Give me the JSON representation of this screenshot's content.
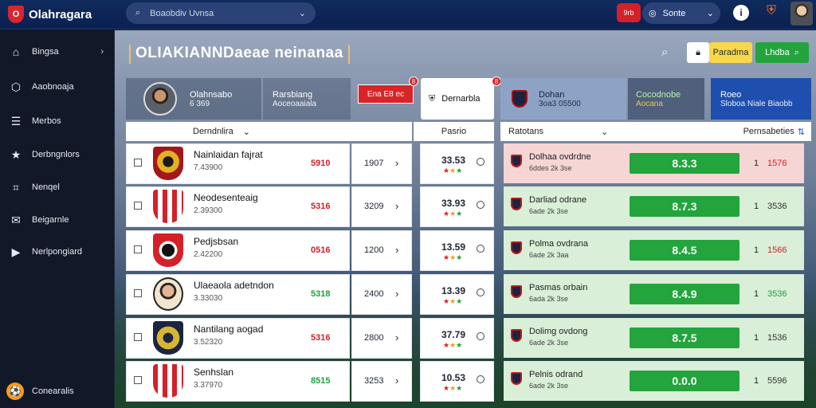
{
  "app": {
    "brand": "Olahragara",
    "logo_glyph": "O"
  },
  "topbar": {
    "search_value": "Boaobdiv Uvnsa",
    "pill_label": "9rb",
    "lang_label": "Sonte",
    "info_label": "i"
  },
  "sidebar": {
    "items": [
      {
        "label": "Bingsa",
        "icon": "home-icon",
        "glyph": "⌂",
        "chevron": true
      },
      {
        "label": "Aaobnoaja",
        "icon": "cube-icon",
        "glyph": "⬡",
        "chevron": false
      },
      {
        "label": "Merbos",
        "icon": "list-icon",
        "glyph": "☰",
        "chevron": false
      },
      {
        "label": "Derbngnlors",
        "icon": "star-icon",
        "glyph": "★",
        "chevron": false
      },
      {
        "label": "Nenqel",
        "icon": "ticket-icon",
        "glyph": "⌗",
        "chevron": false
      },
      {
        "label": "Beigarnle",
        "icon": "mail-icon",
        "glyph": "✉",
        "chevron": false
      },
      {
        "label": "Nerlpongiard",
        "icon": "play-icon",
        "glyph": "▶",
        "chevron": false
      }
    ],
    "bottom_label": "Conearalis"
  },
  "page": {
    "title": "OLIAKIANNDaeae neinanaa",
    "tools": {
      "yellow_label": "Paradma",
      "green_label": "Lhdba"
    }
  },
  "hero": {
    "a": {
      "title": "Olahnsabo",
      "sub": "6 369"
    },
    "b": {
      "title": "Rarsbiang",
      "sub": "Aoceoaaiala"
    },
    "c": {
      "label": "Ena E8 ec",
      "badge": "8"
    },
    "d": {
      "label": "Dernarbla",
      "badge": "8"
    },
    "e": {
      "title": "Dohan",
      "sub": "3oa3 05500"
    },
    "f": {
      "title": "Cocodnobe",
      "sub": "Aocana"
    },
    "g": {
      "title": "Roeo",
      "sub": "Sloboa Niale Biaobb"
    }
  },
  "headers": {
    "col1": "Derndnlira",
    "col2": "Pasrio",
    "col3": "Ratotans",
    "col4": "Pernsabeties"
  },
  "rows": [
    {
      "name": "Nainlaidan fajrat",
      "sub": "7.43900",
      "odd": "5910",
      "odd_color": "#d42029",
      "mid": "1907",
      "score": "33.53",
      "rname": "Dolhaa ovdrdne",
      "rsub": "6ddes 2k 3se",
      "bar": "8.3.3",
      "rnum": "1",
      "rval": "1576",
      "rval_color": "#d42029",
      "tint": "#f6d5d5"
    },
    {
      "name": "Neodesenteaig",
      "sub": "2.39300",
      "odd": "5316",
      "odd_color": "#d42029",
      "mid": "3209",
      "score": "33.93",
      "rname": "Darliad odrane",
      "rsub": "6ade 2k 3se",
      "bar": "8.7.3",
      "rnum": "1",
      "rval": "3536",
      "rval_color": "#333333",
      "tint": "#d9efd8"
    },
    {
      "name": "Pedjsbsan",
      "sub": "2.42200",
      "odd": "0516",
      "odd_color": "#d42029",
      "mid": "1200",
      "score": "13.59",
      "rname": "Polma ovdrana",
      "rsub": "6ade 2k 3aa",
      "bar": "8.4.5",
      "rnum": "1",
      "rval": "1566",
      "rval_color": "#d42029",
      "tint": "#d9efd8"
    },
    {
      "name": "Ulaeaola adetndon",
      "sub": "3.33030",
      "odd": "5318",
      "odd_color": "#1aa33a",
      "mid": "2400",
      "score": "13.39",
      "rname": "Pasmas orbain",
      "rsub": "6ada 2k 3se",
      "bar": "8.4.9",
      "rnum": "1",
      "rval": "3536",
      "rval_color": "#1aa33a",
      "tint": "#d9efd8"
    },
    {
      "name": "Nantilang aogad",
      "sub": "3.52320",
      "odd": "5316",
      "odd_color": "#d42029",
      "mid": "2800",
      "score": "37.79",
      "rname": "Dolimg ovdong",
      "rsub": "6ade 2k 3se",
      "bar": "8.7.5",
      "rnum": "1",
      "rval": "1536",
      "rval_color": "#333333",
      "tint": "#d9efd8"
    },
    {
      "name": "Senhslan",
      "sub": "3.37970",
      "odd": "8515",
      "odd_color": "#1aa33a",
      "mid": "3253",
      "score": "10.53",
      "rname": "Pelnis odrand",
      "rsub": "6ade 2k 3se",
      "bar": "0.0.0",
      "rnum": "1",
      "rval": "5596",
      "rval_color": "#333333",
      "tint": "#d9efd8"
    }
  ],
  "colors": {
    "accent": "#d42029",
    "green": "#23a43d",
    "navy": "#0b2150"
  }
}
